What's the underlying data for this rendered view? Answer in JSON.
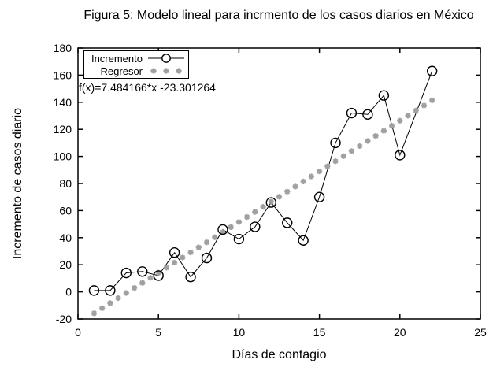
{
  "title": "Figura 5: Modelo lineal para incrmento de los casos diarios en México",
  "equation": "f(x)=7.484166*x -23.301264",
  "legend": {
    "series_label": "Incremento",
    "regressor_label": "Regresor"
  },
  "colors": {
    "series": "#000000",
    "regressor": "#a0a0a0",
    "background": "#ffffff",
    "text": "#000000"
  },
  "chart_data": {
    "type": "line",
    "title": "Figura 5: Modelo lineal para incrmento de los casos diarios en México",
    "xlabel": "Días de contagio",
    "ylabel": "Incremento de casos diario",
    "xlim": [
      0,
      25
    ],
    "ylim": [
      -20,
      180
    ],
    "x_ticks": [
      0,
      5,
      10,
      15,
      20,
      25
    ],
    "y_ticks": [
      -20,
      0,
      20,
      40,
      60,
      80,
      100,
      120,
      140,
      160,
      180
    ],
    "grid": false,
    "legend_position": "top-left",
    "series": [
      {
        "name": "Incremento",
        "style": "linespoints",
        "marker": "circle",
        "color": "#000000",
        "x": [
          1,
          2,
          3,
          4,
          5,
          6,
          7,
          8,
          9,
          10,
          11,
          12,
          13,
          14,
          15,
          16,
          17,
          18,
          19,
          20,
          22
        ],
        "y": [
          1,
          1,
          14,
          15,
          12,
          29,
          11,
          25,
          46,
          39,
          48,
          66,
          51,
          38,
          70,
          110,
          132,
          131,
          145,
          101,
          163
        ]
      },
      {
        "name": "Regresor",
        "style": "points",
        "marker": "asterisk",
        "color": "#a0a0a0",
        "slope": 7.484166,
        "intercept": -23.301264,
        "x_start": 1,
        "x_end": 22,
        "x_step": 0.5
      }
    ]
  }
}
